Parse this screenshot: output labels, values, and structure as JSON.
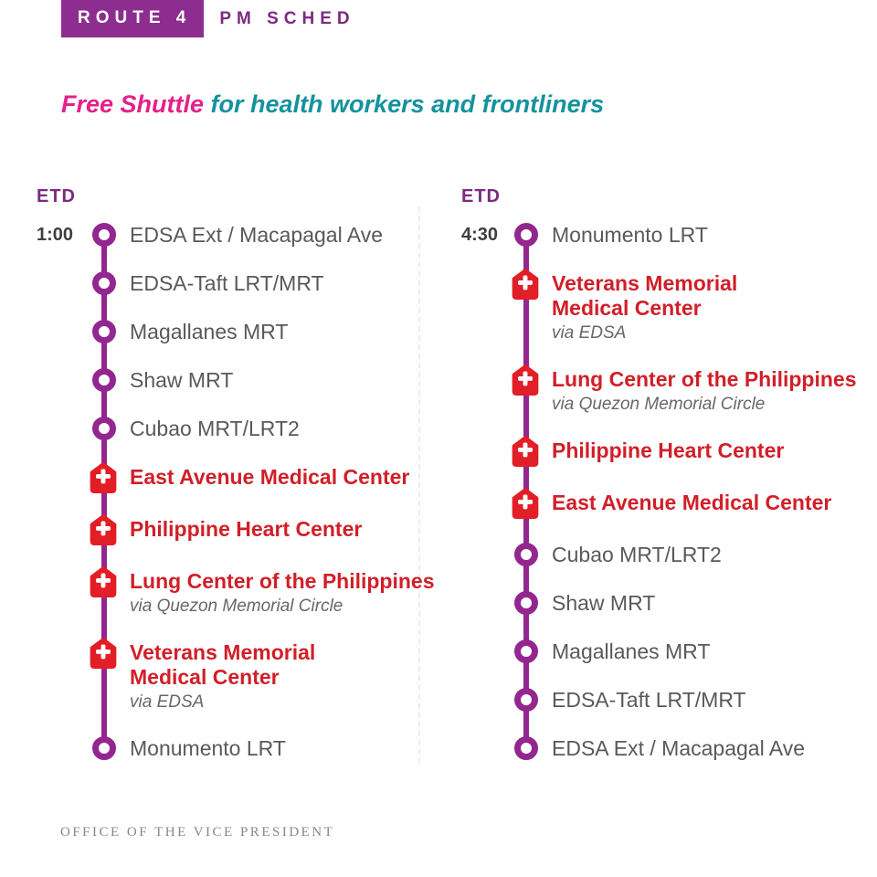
{
  "header": {
    "route_label": "ROUTE 4",
    "sched_label": "PM SCHED"
  },
  "subtitle": {
    "highlight": "Free Shuttle",
    "rest": "for health workers and frontliners"
  },
  "columns": [
    {
      "etd_label": "ETD",
      "time": "1:00",
      "stops": [
        {
          "name": "EDSA Ext / Macapagal Ave",
          "type": "station"
        },
        {
          "name": "EDSA-Taft LRT/MRT",
          "type": "station"
        },
        {
          "name": "Magallanes MRT",
          "type": "station"
        },
        {
          "name": "Shaw MRT",
          "type": "station"
        },
        {
          "name": "Cubao MRT/LRT2",
          "type": "station"
        },
        {
          "name": "East Avenue Medical Center",
          "type": "hospital"
        },
        {
          "name": "Philippine Heart Center",
          "type": "hospital"
        },
        {
          "name": "Lung Center of the Philippines",
          "type": "hospital",
          "via": "via Quezon Memorial Circle"
        },
        {
          "name": "Veterans Memorial\nMedical Center",
          "type": "hospital",
          "via": "via EDSA"
        },
        {
          "name": "Monumento LRT",
          "type": "station"
        }
      ]
    },
    {
      "etd_label": "ETD",
      "time": "4:30",
      "stops": [
        {
          "name": "Monumento LRT",
          "type": "station"
        },
        {
          "name": "Veterans Memorial\nMedical Center",
          "type": "hospital",
          "via": "via EDSA"
        },
        {
          "name": "Lung Center of the Philippines",
          "type": "hospital",
          "via": "via Quezon Memorial Circle"
        },
        {
          "name": "Philippine Heart Center",
          "type": "hospital"
        },
        {
          "name": "East Avenue Medical Center",
          "type": "hospital"
        },
        {
          "name": "Cubao MRT/LRT2",
          "type": "station"
        },
        {
          "name": "Shaw MRT",
          "type": "station"
        },
        {
          "name": "Magallanes MRT",
          "type": "station"
        },
        {
          "name": "EDSA-Taft LRT/MRT",
          "type": "station"
        },
        {
          "name": "EDSA Ext / Macapagal Ave",
          "type": "station"
        }
      ]
    }
  ],
  "footer": {
    "text": "OFFICE OF THE VICE PRESIDENT"
  },
  "icons": {
    "station": "station-node-icon",
    "hospital": "hospital-cross-icon"
  },
  "colors": {
    "badge_purple": "#8e2d90",
    "label_purple": "#7d2a80",
    "timeline_purple": "#93278f",
    "hospital_icon_red": "#e21e26",
    "hospital_text_red": "#d11f28",
    "subtitle_pink": "#e3218b",
    "subtitle_teal": "#15929e",
    "station_text_gray": "#58595b",
    "via_text_gray": "#66676a",
    "footer_gray": "#85868a"
  }
}
